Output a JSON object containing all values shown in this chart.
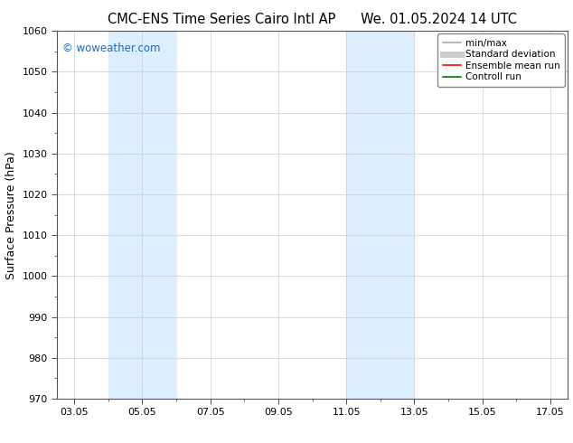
{
  "title_left": "CMC-ENS Time Series Cairo Intl AP",
  "title_right": "We. 01.05.2024 14 UTC",
  "ylabel": "Surface Pressure (hPa)",
  "ylim": [
    970,
    1060
  ],
  "yticks": [
    970,
    980,
    990,
    1000,
    1010,
    1020,
    1030,
    1040,
    1050,
    1060
  ],
  "xtick_labels": [
    "03.05",
    "05.05",
    "07.05",
    "09.05",
    "11.05",
    "13.05",
    "15.05",
    "17.05"
  ],
  "xtick_positions": [
    0,
    2,
    4,
    6,
    8,
    10,
    12,
    14
  ],
  "xlim": [
    -0.5,
    14.5
  ],
  "shaded_regions": [
    {
      "x_start": 1.0,
      "x_end": 3.0,
      "color": "#ddeeff"
    },
    {
      "x_start": 8.0,
      "x_end": 10.0,
      "color": "#ddeeff"
    }
  ],
  "watermark": "© woweather.com",
  "watermark_color": "#1a6ac0",
  "background_color": "#ffffff",
  "legend_items": [
    {
      "label": "min/max",
      "color": "#aaaaaa",
      "lw": 1.2
    },
    {
      "label": "Standard deviation",
      "color": "#cccccc",
      "lw": 5
    },
    {
      "label": "Ensemble mean run",
      "color": "#ff0000",
      "lw": 1.2
    },
    {
      "label": "Controll run",
      "color": "#007700",
      "lw": 1.2
    }
  ],
  "title_fontsize": 10.5,
  "tick_fontsize": 8,
  "ylabel_fontsize": 9,
  "watermark_fontsize": 8.5,
  "legend_fontsize": 7.5
}
